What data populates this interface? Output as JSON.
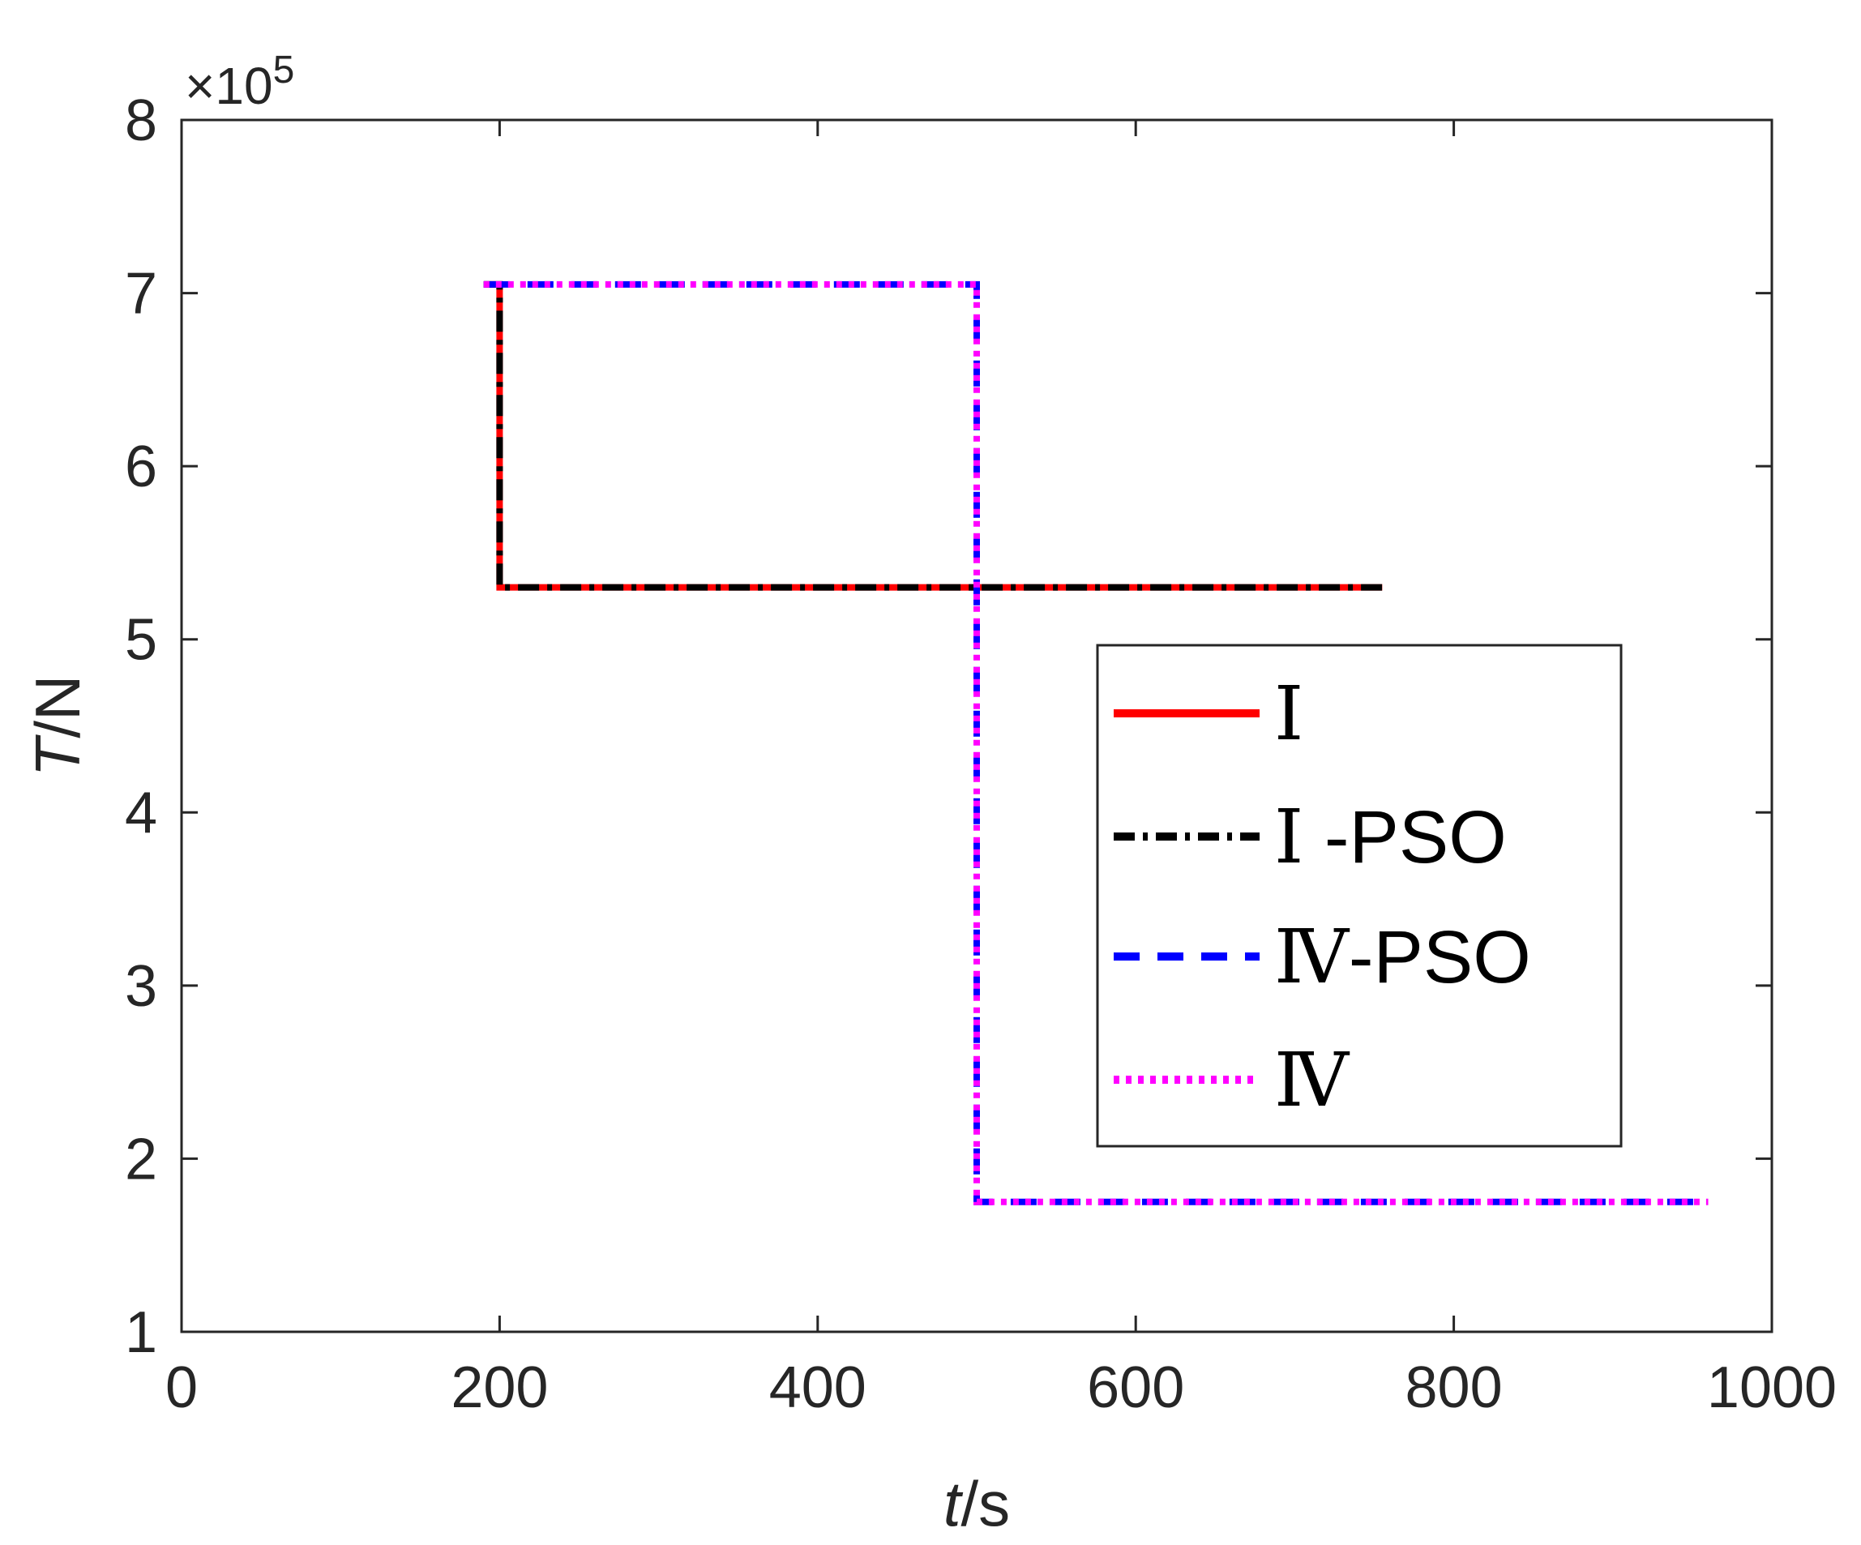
{
  "chart_data": {
    "type": "line",
    "title": "",
    "xlabel": {
      "var": "t",
      "unit": "/s"
    },
    "ylabel": {
      "var": "T",
      "unit": "/N"
    },
    "xlim": [
      0,
      1000
    ],
    "ylim": [
      1,
      8
    ],
    "y_scale_label": {
      "prefix": "×10",
      "exponent": "5"
    },
    "x_ticks": [
      "0",
      "200",
      "400",
      "600",
      "800",
      "1000"
    ],
    "y_ticks": [
      "1",
      "2",
      "3",
      "4",
      "5",
      "6",
      "7",
      "8"
    ],
    "x_tick_values": [
      0,
      200,
      400,
      600,
      800,
      1000
    ],
    "y_tick_values": [
      1,
      2,
      3,
      4,
      5,
      6,
      7,
      8
    ],
    "grid": false,
    "legend_position": "right-center",
    "series": [
      {
        "name": "Ⅰ",
        "legend_roman": "Ⅰ",
        "legend_suffix": "",
        "color": "#ff0000",
        "style": "solid",
        "x": [
          190,
          200,
          200,
          755
        ],
        "y": [
          7.05,
          7.05,
          5.3,
          5.3
        ]
      },
      {
        "name": "Ⅰ-PSO",
        "legend_roman": "Ⅰ",
        "legend_suffix": " -PSO",
        "color": "#000000",
        "style": "dashdot",
        "x": [
          190,
          200,
          200,
          755
        ],
        "y": [
          7.05,
          7.05,
          5.3,
          5.3
        ]
      },
      {
        "name": "Ⅳ-PSO",
        "legend_roman": "Ⅳ",
        "legend_suffix": "-PSO",
        "color": "#0000ff",
        "style": "dashed",
        "x": [
          190,
          500,
          500,
          960
        ],
        "y": [
          7.05,
          7.05,
          1.75,
          1.75
        ]
      },
      {
        "name": "Ⅳ",
        "legend_roman": "Ⅳ",
        "legend_suffix": "",
        "color": "#ff00ff",
        "style": "dotted",
        "x": [
          190,
          500,
          500,
          960
        ],
        "y": [
          7.05,
          7.05,
          1.75,
          1.75
        ]
      }
    ]
  }
}
